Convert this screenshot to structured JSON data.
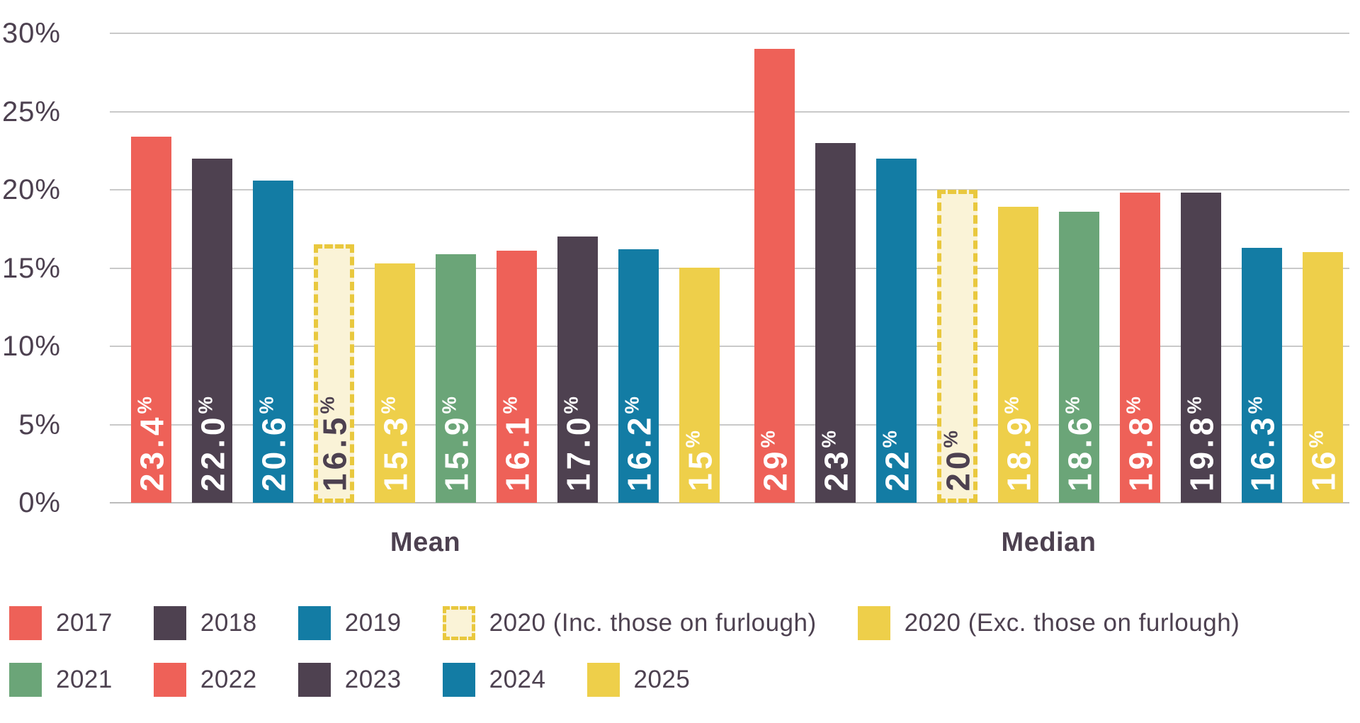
{
  "chart_data": {
    "type": "bar",
    "title": "",
    "groups": [
      "Mean",
      "Median"
    ],
    "y_axis": {
      "grid": true,
      "min": 0,
      "max": 30,
      "ticks": [
        {
          "label": "0%",
          "value": 0
        },
        {
          "label": "5%",
          "value": 5
        },
        {
          "label": "10%",
          "value": 10
        },
        {
          "label": "15%",
          "value": 15
        },
        {
          "label": "20%",
          "value": 20
        },
        {
          "label": "25%",
          "value": 25
        },
        {
          "label": "30%",
          "value": 30
        }
      ]
    },
    "series": [
      {
        "name": "2017",
        "color": "#ee6158",
        "dashed": false,
        "values": {
          "Mean": 23.4,
          "Median": 29
        },
        "labels": {
          "Mean": "23.4%",
          "Median": "29%"
        }
      },
      {
        "name": "2018",
        "color": "#4e4150",
        "dashed": false,
        "values": {
          "Mean": 22.0,
          "Median": 23
        },
        "labels": {
          "Mean": "22.0%",
          "Median": "23%"
        }
      },
      {
        "name": "2019",
        "color": "#137ca4",
        "dashed": false,
        "values": {
          "Mean": 20.6,
          "Median": 22
        },
        "labels": {
          "Mean": "20.6%",
          "Median": "22%"
        }
      },
      {
        "name": "2020 (Inc. those on furlough)",
        "color": "#faf3d7",
        "border_color": "#e9c83e",
        "label_color": "#4d4150",
        "dashed": true,
        "values": {
          "Mean": 16.5,
          "Median": 20
        },
        "labels": {
          "Mean": "16.5%",
          "Median": "20%"
        }
      },
      {
        "name": "2020 (Exc. those on furlough)",
        "color": "#eecf4a",
        "dashed": false,
        "values": {
          "Mean": 15.3,
          "Median": 18.9
        },
        "labels": {
          "Mean": "15.3%",
          "Median": "18.9%"
        }
      },
      {
        "name": "2021",
        "color": "#6ba578",
        "dashed": false,
        "values": {
          "Mean": 15.9,
          "Median": 18.6
        },
        "labels": {
          "Mean": "15.9%",
          "Median": "18.6%"
        }
      },
      {
        "name": "2022",
        "color": "#ee6158",
        "dashed": false,
        "values": {
          "Mean": 16.1,
          "Median": 19.8
        },
        "labels": {
          "Mean": "16.1%",
          "Median": "19.8%"
        }
      },
      {
        "name": "2023",
        "color": "#4e4150",
        "dashed": false,
        "values": {
          "Mean": 17.0,
          "Median": 19.8
        },
        "labels": {
          "Mean": "17.0%",
          "Median": "19.8%"
        }
      },
      {
        "name": "2024",
        "color": "#137ca4",
        "dashed": false,
        "values": {
          "Mean": 16.2,
          "Median": 16.3
        },
        "labels": {
          "Mean": "16.2%",
          "Median": "16.3%"
        }
      },
      {
        "name": "2025",
        "color": "#eecf4a",
        "dashed": false,
        "values": {
          "Mean": 15.0,
          "Median": 16.0
        },
        "labels": {
          "Mean": "15%",
          "Median": "16%"
        }
      }
    ],
    "legend_rows": [
      [
        0,
        1,
        2,
        3,
        4
      ],
      [
        5,
        6,
        7,
        8,
        9
      ]
    ],
    "legend_position": "bottom",
    "colors": {
      "text": "#4d4150",
      "gridline": "#c9c9c9",
      "baseline": "#bcbcbc",
      "background": "#ffffff"
    }
  }
}
